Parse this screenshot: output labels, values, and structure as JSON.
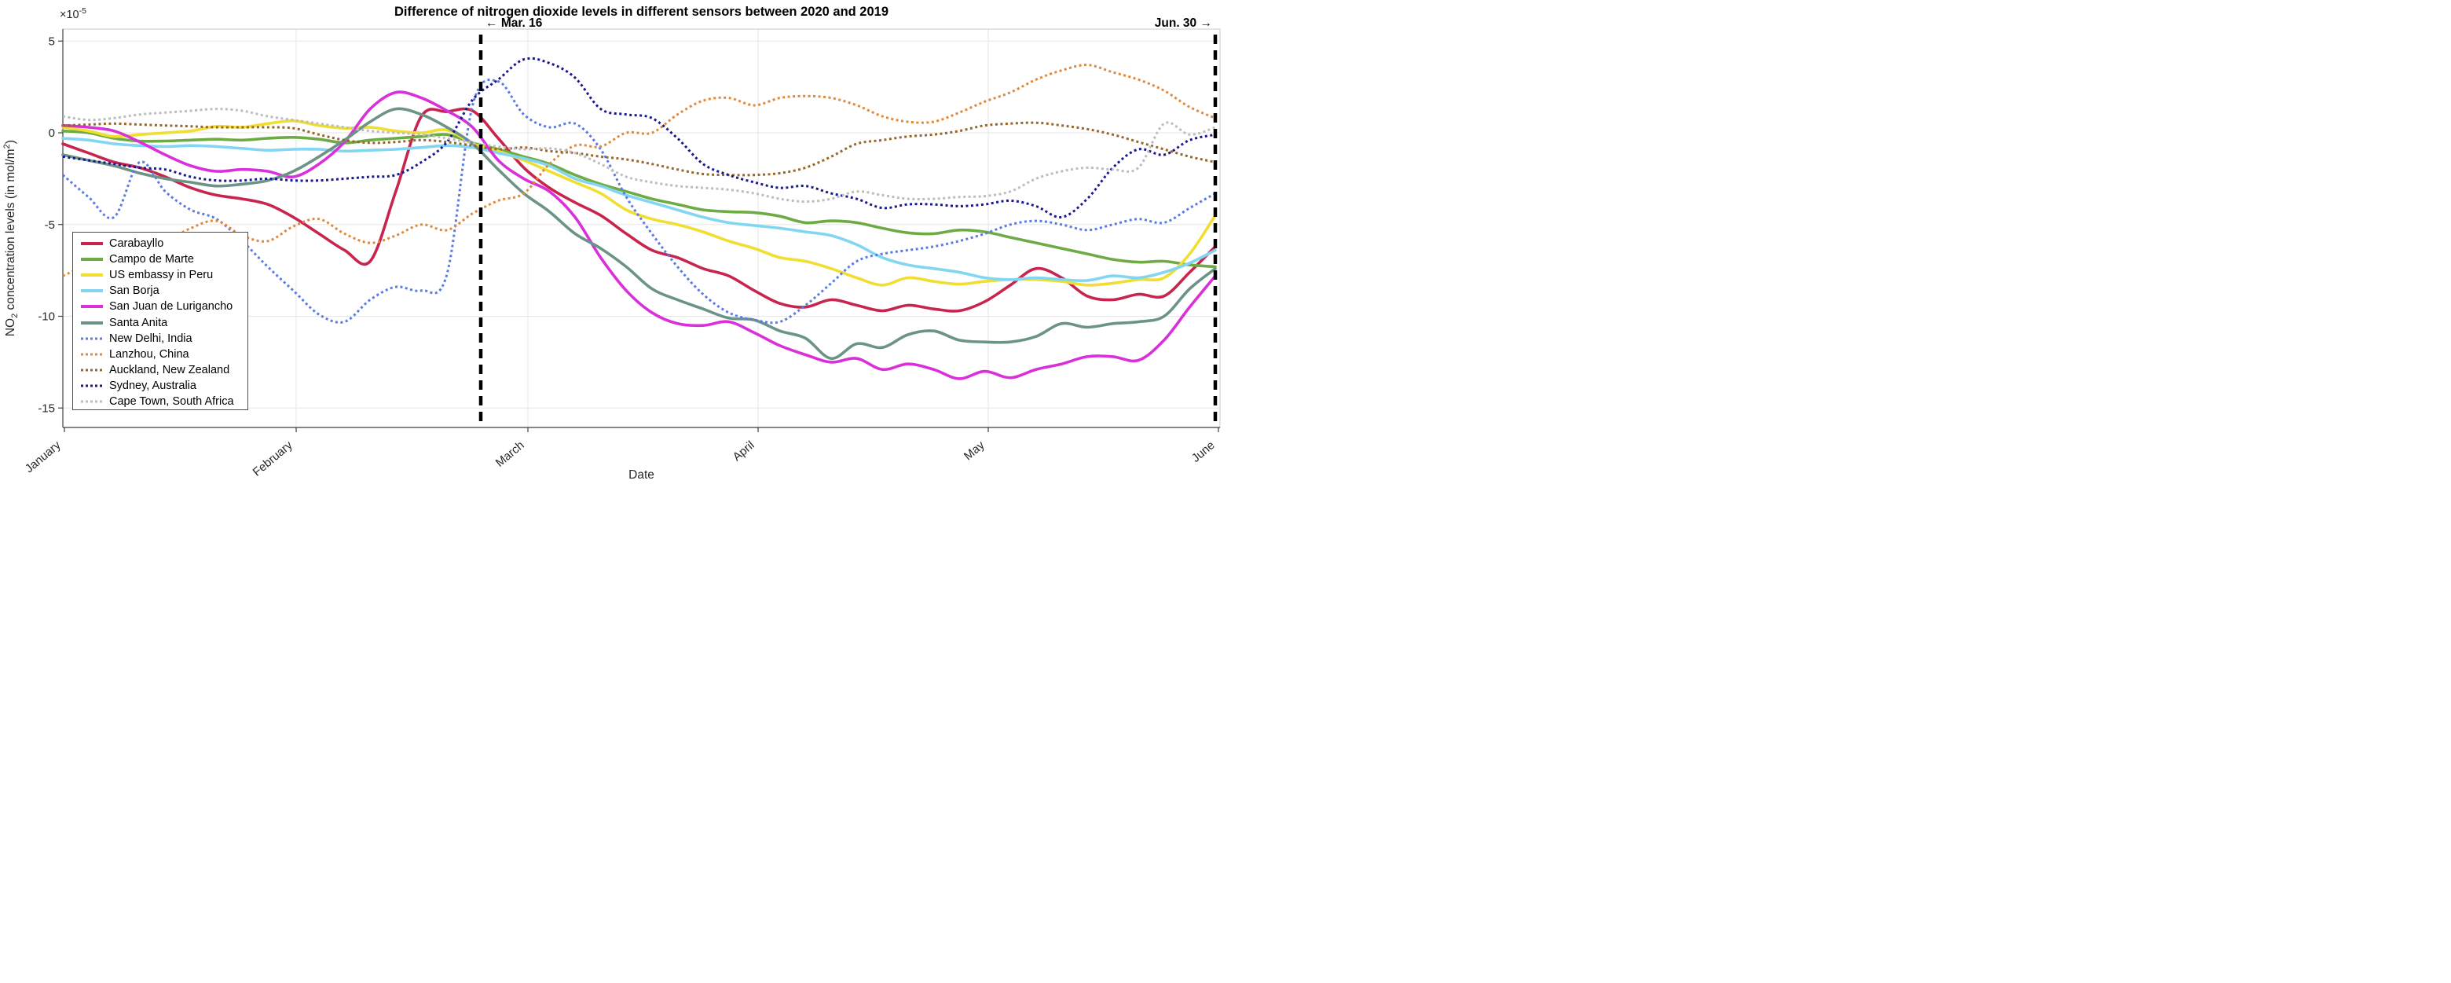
{
  "title": "Difference of nitrogen dioxide levels in different sensors between 2020 and 2019",
  "axes": {
    "x_label": "Date",
    "y_label_parts": {
      "pre": "NO",
      "sub": "2",
      "mid": " concentration levels (in mol/m",
      "sup": "2",
      "post": ")"
    },
    "y_multiplier": {
      "base": "×10",
      "exp": "-5"
    },
    "y_ticks": [
      5,
      0,
      -5,
      -10,
      -15
    ],
    "x_ticks": [
      "January",
      "February",
      "March",
      "April",
      "May",
      "June"
    ]
  },
  "annotations": {
    "mar16": {
      "arrow": "← ",
      "text": "Mar. 16"
    },
    "jun30": {
      "text": "Jun. 30",
      "arrow": " →"
    }
  },
  "chart_data": {
    "type": "line",
    "title": "Difference of nitrogen dioxide levels in different sensors between 2020 and 2019",
    "xlabel": "Date",
    "ylabel": "NO2 concentration levels (in mol/m2)",
    "y_unit_multiplier": 1e-05,
    "ylim": [
      -16.2,
      5.7
    ],
    "x_range": [
      "January 1",
      "June 30"
    ],
    "x_tick_labels": [
      "January",
      "February",
      "March",
      "April",
      "May",
      "June"
    ],
    "event_lines": [
      {
        "label": "Mar. 16",
        "x_fraction": 0.363
      },
      {
        "label": "Jun. 30",
        "x_fraction": 1.0
      }
    ],
    "grid": true,
    "legend_position": "lower-left",
    "n_points_per_series": 46,
    "x_points_note": "points evenly spaced from Jan 1 to Jun 30",
    "series": [
      {
        "name": "Carabayllo",
        "color": "#C8254E",
        "style": "solid",
        "values": [
          -0.6,
          -1.1,
          -1.6,
          -1.9,
          -2.4,
          -3.0,
          -3.4,
          -3.6,
          -3.9,
          -4.6,
          -5.5,
          -6.4,
          -7.0,
          -3.2,
          0.9,
          1.15,
          1.2,
          -0.3,
          -1.9,
          -3.0,
          -3.8,
          -4.5,
          -5.5,
          -6.4,
          -6.8,
          -7.4,
          -7.8,
          -8.6,
          -9.3,
          -9.5,
          -9.1,
          -9.4,
          -9.7,
          -9.4,
          -9.6,
          -9.7,
          -9.2,
          -8.3,
          -7.4,
          -7.9,
          -8.9,
          -9.1,
          -8.8,
          -8.9,
          -7.6,
          -6.2
        ]
      },
      {
        "name": "Campo de Marte",
        "color": "#6EAB45",
        "style": "solid",
        "values": [
          0.1,
          0.0,
          -0.3,
          -0.45,
          -0.45,
          -0.4,
          -0.35,
          -0.4,
          -0.3,
          -0.25,
          -0.35,
          -0.55,
          -0.4,
          -0.3,
          -0.2,
          -0.1,
          -0.55,
          -0.9,
          -1.3,
          -1.7,
          -2.3,
          -2.8,
          -3.2,
          -3.6,
          -3.9,
          -4.2,
          -4.3,
          -4.35,
          -4.55,
          -4.9,
          -4.8,
          -4.9,
          -5.2,
          -5.45,
          -5.5,
          -5.3,
          -5.4,
          -5.7,
          -6.0,
          -6.3,
          -6.6,
          -6.9,
          -7.05,
          -7.0,
          -7.2,
          -7.3
        ]
      },
      {
        "name": "US embassy in Peru",
        "color": "#F0DE30",
        "style": "solid",
        "values": [
          0.3,
          0.1,
          -0.2,
          -0.1,
          0.0,
          0.1,
          0.35,
          0.3,
          0.5,
          0.65,
          0.4,
          0.25,
          0.3,
          0.1,
          0.0,
          0.15,
          -0.6,
          -1.0,
          -1.5,
          -2.1,
          -2.7,
          -3.3,
          -4.2,
          -4.7,
          -5.0,
          -5.4,
          -5.9,
          -6.3,
          -6.8,
          -7.0,
          -7.4,
          -7.9,
          -8.3,
          -7.9,
          -8.1,
          -8.25,
          -8.1,
          -8.0,
          -8.0,
          -8.1,
          -8.3,
          -8.2,
          -8.0,
          -7.9,
          -6.6,
          -4.5
        ]
      },
      {
        "name": "San Borja",
        "color": "#82D6F2",
        "style": "solid",
        "values": [
          -0.3,
          -0.4,
          -0.6,
          -0.7,
          -0.75,
          -0.7,
          -0.75,
          -0.85,
          -0.95,
          -0.9,
          -0.9,
          -1.0,
          -0.95,
          -0.9,
          -0.8,
          -0.7,
          -0.8,
          -1.1,
          -1.4,
          -1.8,
          -2.5,
          -2.9,
          -3.4,
          -3.8,
          -4.2,
          -4.6,
          -4.9,
          -5.05,
          -5.2,
          -5.4,
          -5.6,
          -6.1,
          -6.8,
          -7.2,
          -7.4,
          -7.6,
          -7.9,
          -8.0,
          -7.9,
          -8.0,
          -8.05,
          -7.8,
          -7.9,
          -7.6,
          -7.1,
          -6.4
        ]
      },
      {
        "name": "San Juan de Lurigancho",
        "color": "#D930D9",
        "style": "solid",
        "values": [
          0.4,
          0.3,
          0.1,
          -0.5,
          -1.2,
          -1.8,
          -2.1,
          -2.0,
          -2.1,
          -2.4,
          -1.7,
          -0.5,
          1.3,
          2.2,
          1.9,
          1.2,
          0.3,
          -1.5,
          -2.5,
          -3.2,
          -4.6,
          -6.8,
          -8.6,
          -9.8,
          -10.4,
          -10.5,
          -10.3,
          -10.9,
          -11.6,
          -12.1,
          -12.5,
          -12.3,
          -12.9,
          -12.6,
          -12.9,
          -13.4,
          -13.0,
          -13.35,
          -12.9,
          -12.6,
          -12.2,
          -12.2,
          -12.4,
          -11.3,
          -9.5,
          -7.8
        ]
      },
      {
        "name": "Santa Anita",
        "color": "#6B9486",
        "style": "solid",
        "values": [
          -1.2,
          -1.5,
          -1.8,
          -2.2,
          -2.5,
          -2.7,
          -2.9,
          -2.8,
          -2.6,
          -2.1,
          -1.3,
          -0.4,
          0.6,
          1.3,
          1.0,
          0.3,
          -0.6,
          -2.0,
          -3.3,
          -4.3,
          -5.5,
          -6.3,
          -7.3,
          -8.5,
          -9.1,
          -9.6,
          -10.1,
          -10.2,
          -10.8,
          -11.2,
          -12.3,
          -11.5,
          -11.7,
          -11.0,
          -10.8,
          -11.3,
          -11.4,
          -11.4,
          -11.1,
          -10.4,
          -10.6,
          -10.4,
          -10.3,
          -10.0,
          -8.5,
          -7.4
        ]
      },
      {
        "name": "New Delhi, India",
        "color": "#5B7BE4",
        "style": "dotted",
        "values": [
          -2.3,
          -3.5,
          -4.6,
          -1.6,
          -3.2,
          -4.2,
          -4.7,
          -5.9,
          -7.3,
          -8.6,
          -9.9,
          -10.3,
          -9.1,
          -8.4,
          -8.6,
          -7.7,
          1.5,
          2.8,
          1.0,
          0.3,
          0.5,
          -0.9,
          -3.5,
          -5.5,
          -7.3,
          -8.8,
          -9.8,
          -10.2,
          -10.3,
          -9.4,
          -8.2,
          -7.0,
          -6.6,
          -6.4,
          -6.2,
          -5.9,
          -5.5,
          -5.0,
          -4.8,
          -5.0,
          -5.3,
          -5.0,
          -4.7,
          -4.9,
          -4.1,
          -3.3
        ]
      },
      {
        "name": "Lanzhou, China",
        "color": "#E1893B",
        "style": "dotted",
        "values": [
          -7.8,
          -7.3,
          -7.9,
          -7.0,
          -6.0,
          -5.2,
          -4.8,
          -5.6,
          -5.9,
          -5.1,
          -4.7,
          -5.5,
          -6.0,
          -5.6,
          -5.0,
          -5.3,
          -4.4,
          -3.7,
          -3.3,
          -1.7,
          -0.7,
          -0.75,
          0.0,
          0.0,
          1.0,
          1.75,
          1.9,
          1.5,
          1.9,
          2.0,
          1.9,
          1.5,
          0.9,
          0.6,
          0.6,
          1.1,
          1.7,
          2.2,
          2.9,
          3.4,
          3.7,
          3.3,
          2.9,
          2.3,
          1.4,
          0.8
        ]
      },
      {
        "name": "Auckland, New Zealand",
        "color": "#96662B",
        "style": "dotted",
        "values": [
          0.4,
          0.45,
          0.5,
          0.45,
          0.4,
          0.35,
          0.3,
          0.3,
          0.3,
          0.25,
          -0.1,
          -0.4,
          -0.55,
          -0.5,
          -0.4,
          -0.5,
          -0.7,
          -0.9,
          -0.8,
          -1.0,
          -1.1,
          -1.3,
          -1.45,
          -1.7,
          -2.0,
          -2.25,
          -2.3,
          -2.3,
          -2.2,
          -1.9,
          -1.3,
          -0.6,
          -0.4,
          -0.2,
          -0.1,
          0.1,
          0.4,
          0.5,
          0.55,
          0.4,
          0.2,
          -0.1,
          -0.5,
          -0.9,
          -1.3,
          -1.6
        ]
      },
      {
        "name": "Sydney, Australia",
        "color": "#181890",
        "style": "dotted",
        "values": [
          -1.3,
          -1.5,
          -1.7,
          -1.9,
          -2.0,
          -2.4,
          -2.6,
          -2.6,
          -2.5,
          -2.6,
          -2.6,
          -2.5,
          -2.4,
          -2.3,
          -1.6,
          -0.5,
          1.8,
          2.9,
          4.0,
          3.8,
          3.0,
          1.3,
          1.0,
          0.8,
          -0.3,
          -1.7,
          -2.3,
          -2.7,
          -3.0,
          -2.9,
          -3.3,
          -3.6,
          -4.1,
          -3.9,
          -3.9,
          -4.0,
          -3.9,
          -3.7,
          -4.0,
          -4.6,
          -3.6,
          -1.9,
          -0.9,
          -1.2,
          -0.4,
          -0.1
        ]
      },
      {
        "name": "Cape Town, South Africa",
        "color": "#BDBDBD",
        "style": "dotted",
        "values": [
          0.9,
          0.7,
          0.8,
          1.0,
          1.1,
          1.2,
          1.3,
          1.2,
          0.9,
          0.7,
          0.5,
          0.3,
          0.1,
          0.0,
          -0.1,
          -0.3,
          -0.55,
          -0.75,
          -0.9,
          -0.85,
          -1.1,
          -1.7,
          -2.4,
          -2.7,
          -2.9,
          -3.0,
          -3.1,
          -3.3,
          -3.6,
          -3.75,
          -3.6,
          -3.2,
          -3.4,
          -3.6,
          -3.6,
          -3.5,
          -3.45,
          -3.2,
          -2.5,
          -2.1,
          -1.9,
          -2.0,
          -1.9,
          0.5,
          -0.1,
          0.3
        ]
      }
    ]
  },
  "style_colors": {
    "grid": "#E6E6E6",
    "axis_dark": "#3F3F3F",
    "axis_light": "#C9C9C9",
    "tick_text": "#262626",
    "event_line": "#000000"
  }
}
